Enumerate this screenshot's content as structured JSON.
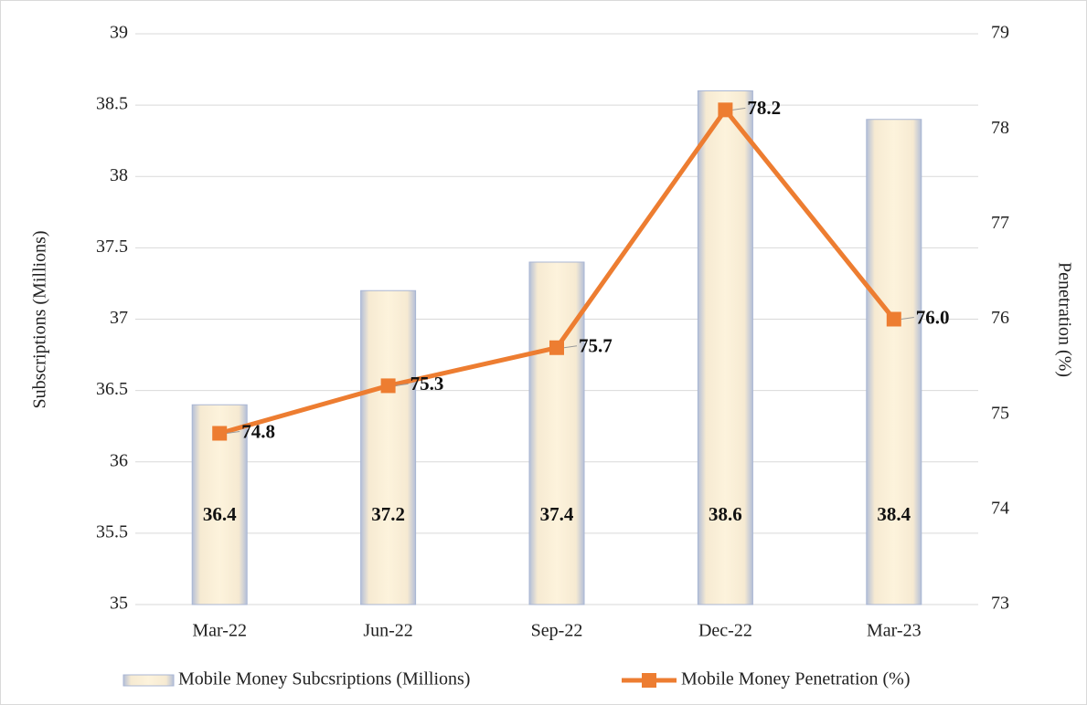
{
  "chart_data": {
    "type": "bar",
    "categories": [
      "Mar-22",
      "Jun-22",
      "Sep-22",
      "Dec-22",
      "Mar-23"
    ],
    "series": [
      {
        "name": "Mobile Money Subcsriptions (Millions)",
        "type": "bar",
        "color": "#a9b6d3",
        "values": [
          36.4,
          37.2,
          37.4,
          38.6,
          38.4
        ]
      },
      {
        "name": "Mobile Money Penetration (%)",
        "type": "line",
        "axis": "y2",
        "color": "#ed7d31",
        "values": [
          74.8,
          75.3,
          75.7,
          78.2,
          76.0
        ],
        "value_labels": [
          "74.8",
          "75.3",
          "75.7",
          "78.2",
          "76.0"
        ]
      }
    ],
    "ylabel": "Subscriptions (Millions)",
    "y2label": "Penetration (%)",
    "ylim": [
      35,
      39
    ],
    "yticks": [
      35,
      35.5,
      36,
      36.5,
      37,
      37.5,
      38,
      38.5,
      39
    ],
    "y2lim": [
      73,
      79
    ],
    "y2ticks": [
      73,
      74,
      75,
      76,
      77,
      78,
      79
    ],
    "grid": true,
    "legend": "bottom"
  }
}
